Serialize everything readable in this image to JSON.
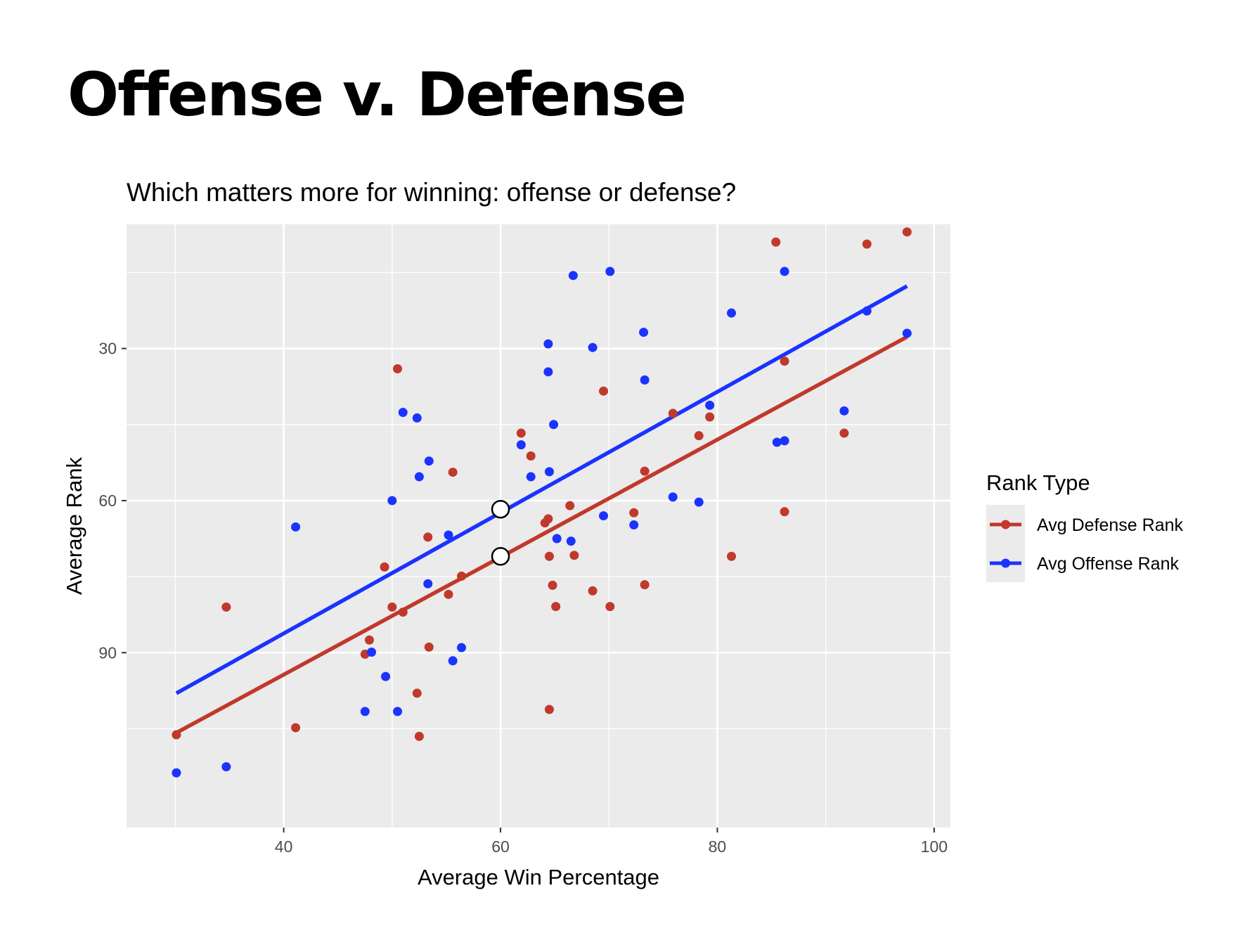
{
  "slide": {
    "title": "Offense v. Defense"
  },
  "chart_data": {
    "type": "scatter",
    "title": "Which matters more for winning: offense or defense?",
    "xlabel": "Average Win Percentage",
    "ylabel": "Average Rank",
    "xlim": [
      25.5,
      101.5
    ],
    "ylim": [
      124.5,
      5.5
    ],
    "y_reversed": true,
    "x_ticks": [
      40,
      60,
      80,
      100
    ],
    "y_ticks": [
      30,
      60,
      90
    ],
    "x_tick_labels": [
      "40",
      "60",
      "80",
      "100"
    ],
    "y_tick_labels": [
      "30",
      "60",
      "90"
    ],
    "grid": true,
    "background": "#ebebeb",
    "legend": {
      "title": "Rank Type",
      "position": "right"
    },
    "series": [
      {
        "name": "Avg Defense Rank",
        "color": "#c0392b",
        "points": [
          [
            30.1,
            106.2
          ],
          [
            34.7,
            81.0
          ],
          [
            41.1,
            104.8
          ],
          [
            47.5,
            90.3
          ],
          [
            47.9,
            87.5
          ],
          [
            49.3,
            73.1
          ],
          [
            50.0,
            81.0
          ],
          [
            50.5,
            34.0
          ],
          [
            51.0,
            82.0
          ],
          [
            52.3,
            98.0
          ],
          [
            52.5,
            106.5
          ],
          [
            53.3,
            67.2
          ],
          [
            53.4,
            88.9
          ],
          [
            55.2,
            78.5
          ],
          [
            55.6,
            54.4
          ],
          [
            56.4,
            74.9
          ],
          [
            61.9,
            46.7
          ],
          [
            62.8,
            51.2
          ],
          [
            64.1,
            64.4
          ],
          [
            64.4,
            63.6
          ],
          [
            64.5,
            71.0
          ],
          [
            64.5,
            101.2
          ],
          [
            64.8,
            76.7
          ],
          [
            65.1,
            80.9
          ],
          [
            66.4,
            61.0
          ],
          [
            66.8,
            70.8
          ],
          [
            68.5,
            77.8
          ],
          [
            69.5,
            38.4
          ],
          [
            70.1,
            80.9
          ],
          [
            72.3,
            62.4
          ],
          [
            73.3,
            54.2
          ],
          [
            73.3,
            76.6
          ],
          [
            75.9,
            42.8
          ],
          [
            78.3,
            47.2
          ],
          [
            79.3,
            43.5
          ],
          [
            81.3,
            71.0
          ],
          [
            85.4,
            9.0
          ],
          [
            86.2,
            32.5
          ],
          [
            86.2,
            62.2
          ],
          [
            91.7,
            46.7
          ],
          [
            93.8,
            9.4
          ],
          [
            97.5,
            7.0
          ]
        ]
      },
      {
        "name": "Avg Offense Rank",
        "color": "#1a33ff",
        "points": [
          [
            30.1,
            113.7
          ],
          [
            34.7,
            112.5
          ],
          [
            41.1,
            65.2
          ],
          [
            47.5,
            101.6
          ],
          [
            48.1,
            89.9
          ],
          [
            49.4,
            94.7
          ],
          [
            50.0,
            60.0
          ],
          [
            50.5,
            101.6
          ],
          [
            51.0,
            42.6
          ],
          [
            52.3,
            43.7
          ],
          [
            52.5,
            55.3
          ],
          [
            53.3,
            76.4
          ],
          [
            53.4,
            52.2
          ],
          [
            55.2,
            66.8
          ],
          [
            55.6,
            91.6
          ],
          [
            56.4,
            89.0
          ],
          [
            61.9,
            49.0
          ],
          [
            62.8,
            55.3
          ],
          [
            64.4,
            29.1
          ],
          [
            64.4,
            34.6
          ],
          [
            64.5,
            54.3
          ],
          [
            64.9,
            45.0
          ],
          [
            65.2,
            67.5
          ],
          [
            66.5,
            68.0
          ],
          [
            66.7,
            15.6
          ],
          [
            68.5,
            29.8
          ],
          [
            69.5,
            63.0
          ],
          [
            70.1,
            14.8
          ],
          [
            72.3,
            64.8
          ],
          [
            73.2,
            26.8
          ],
          [
            73.3,
            36.2
          ],
          [
            75.9,
            59.3
          ],
          [
            78.3,
            60.3
          ],
          [
            79.3,
            41.2
          ],
          [
            81.3,
            23.0
          ],
          [
            85.5,
            48.5
          ],
          [
            86.2,
            14.8
          ],
          [
            86.2,
            48.2
          ],
          [
            91.7,
            42.3
          ],
          [
            93.8,
            22.6
          ],
          [
            97.5,
            27.0
          ]
        ]
      }
    ],
    "fit_lines": [
      {
        "series": "Avg Offense Rank",
        "x": [
          30.1,
          97.5
        ],
        "y": [
          98.0,
          17.7
        ],
        "color": "#1a33ff"
      },
      {
        "series": "Avg Defense Rank",
        "x": [
          30.1,
          97.5
        ],
        "y": [
          105.8,
          27.7
        ],
        "color": "#c0392b"
      }
    ],
    "highlight_points": [
      {
        "series": "Avg Offense Rank",
        "x": 60.0,
        "y": 61.7
      },
      {
        "series": "Avg Defense Rank",
        "x": 60.0,
        "y": 71.0
      }
    ]
  }
}
